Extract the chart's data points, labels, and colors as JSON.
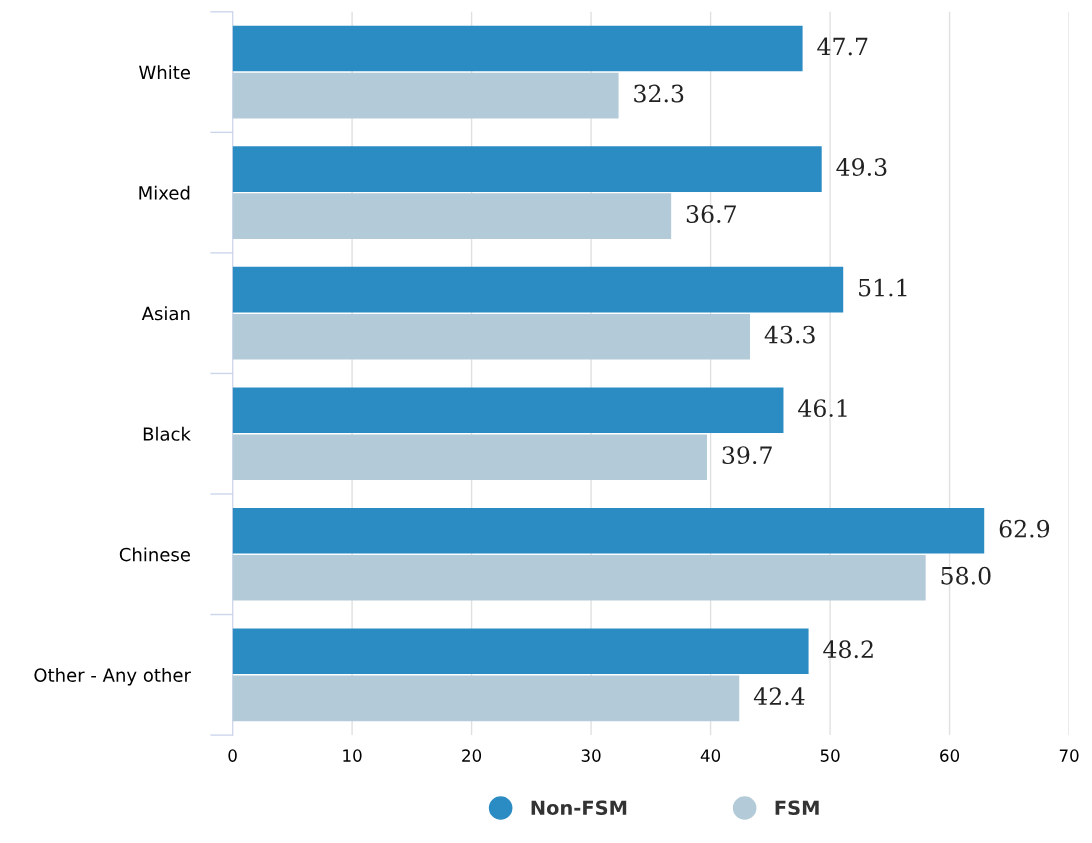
{
  "chart_data": {
    "type": "bar",
    "orientation": "horizontal",
    "categories": [
      "White",
      "Mixed",
      "Asian",
      "Black",
      "Chinese",
      "Other - Any other"
    ],
    "series": [
      {
        "name": "Non-FSM",
        "color": "#2b8cc4",
        "values": [
          47.7,
          49.3,
          51.1,
          46.1,
          62.9,
          48.2
        ],
        "value_labels": [
          "47.7",
          "49.3",
          "51.1",
          "46.1",
          "62.9",
          "48.2"
        ]
      },
      {
        "name": "FSM",
        "color": "#b3cad8",
        "values": [
          32.3,
          36.7,
          43.3,
          39.7,
          58.0,
          42.4
        ],
        "value_labels": [
          "32.3",
          "36.7",
          "43.3",
          "39.7",
          "58.0",
          "42.4"
        ]
      }
    ],
    "xlim": [
      0,
      70
    ],
    "xticks": [
      0,
      10,
      20,
      30,
      40,
      50,
      60,
      70
    ],
    "grid": "x",
    "legend": "bottom"
  }
}
